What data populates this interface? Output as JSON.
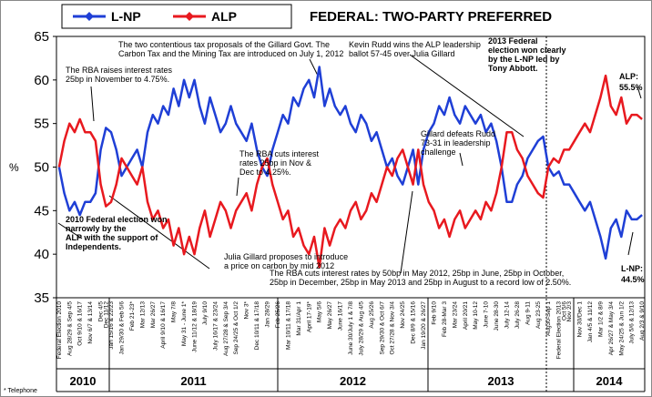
{
  "chart_data": {
    "type": "line",
    "title": "FEDERAL: TWO-PARTY PREFERRED",
    "y_label": "%",
    "footnote": "* Telephone",
    "ylim": [
      35,
      65
    ],
    "yticks": [
      35,
      40,
      45,
      50,
      55,
      60,
      65
    ],
    "years": [
      "2010",
      "2011",
      "2012",
      "2013",
      "2014"
    ],
    "categories": [
      "Federal Election 2010",
      null,
      "Aug 28/29 & Sep 4/5",
      null,
      "Oct 9/10 & 16/17",
      null,
      "Nov 6/7 & 13/14",
      null,
      "Dec 4/5",
      "Dec 11/12",
      "Jan 15/16 & 22/23",
      null,
      "Jan 29/30 & Feb 5/6",
      null,
      "Feb 21-23*",
      null,
      "Mar 12/13",
      null,
      "Mar 26/27",
      null,
      "April 9/10 & 16/17",
      null,
      "May 7/8",
      null,
      "May 31 - June 1*",
      null,
      "June 11/12 & 18/19",
      null,
      "July 9/10",
      null,
      "July 16/17 & 23/24",
      null,
      "Aug 27/28 & Sep 3/4",
      null,
      "Sep 24/25 & Oct 1/2",
      null,
      "Nov 3*",
      null,
      "Dec 10/11 & 17/18",
      null,
      "Jan 28/29",
      null,
      "Feb 25/26",
      null,
      "Mar 10/11 & 17/18",
      null,
      "Mar 31/Apr 1",
      null,
      "April 17-19*",
      null,
      "May 5/6",
      null,
      "May 26/27",
      null,
      "June 16/17",
      null,
      "June 30/July 1 & 7/8",
      null,
      "July 28/29 & Aug 4/5",
      null,
      "Aug 25/26",
      null,
      "Sep 29/30 & Oct 6/7",
      null,
      "Oct 27/28 & Nov 3/4",
      null,
      "Nov 24/25",
      null,
      "Dec 8/9 & 15/16",
      null,
      "Jan 19/20 & 26/27",
      null,
      "Feb 9/10",
      null,
      "Feb 28-Mar 3",
      null,
      "Mar 23/24",
      null,
      "April 20/21",
      null,
      "May 10-12",
      null,
      "June 7-10",
      null,
      "June 28-30",
      null,
      "July 12-14",
      null,
      "July 26-28",
      null,
      "Aug 9-11",
      null,
      "Aug 23-25",
      null,
      "Aug30-Sep 1",
      null,
      "Federal Election 2013",
      "Oct 5/6",
      "Nov 2/3",
      null,
      "Nov 30/Dec 1",
      null,
      "Jan 4/5 & 11/12",
      null,
      "Mar 1/2 & 8/9",
      null,
      "Apr 26/27 & May 3/4",
      null,
      "May 24/25 & Jun 1/2",
      null,
      "July 5/6 & 12/13",
      null,
      "Aug 2/3 & 9/10"
    ],
    "series": [
      {
        "name": "L-NP",
        "color": "#1f3fd6",
        "values": [
          50,
          47,
          45,
          46,
          44.5,
          46,
          46,
          47,
          52,
          54.5,
          54,
          52,
          49,
          50,
          51,
          52,
          50,
          54,
          56,
          55,
          57,
          56,
          59,
          57,
          60,
          58,
          60,
          57,
          55,
          58,
          56,
          54,
          55,
          57,
          55,
          54,
          53,
          55,
          52,
          50,
          49,
          52,
          54,
          56,
          55,
          58,
          57,
          59,
          60,
          58,
          61.5,
          57,
          59,
          57,
          56,
          57,
          55,
          54,
          56,
          55,
          53,
          54,
          52,
          50,
          51,
          49,
          48,
          50,
          52,
          48,
          52,
          54,
          55,
          57,
          56,
          58,
          56,
          55,
          57,
          56,
          55,
          56,
          54,
          55,
          53,
          50,
          46,
          46,
          48,
          49,
          51,
          52,
          53,
          53.5,
          50,
          49,
          49.5,
          48,
          48,
          47,
          46,
          45,
          46,
          44,
          42,
          39.5,
          43,
          44,
          42,
          45,
          44,
          44,
          44.5
        ]
      },
      {
        "name": "ALP",
        "color": "#e8191f",
        "values": [
          50,
          53,
          55,
          54,
          55.5,
          54,
          54,
          53,
          48,
          45.5,
          46,
          48,
          51,
          50,
          49,
          48,
          50,
          46,
          44,
          45,
          43,
          44,
          41,
          43,
          40,
          42,
          40,
          43,
          45,
          42,
          44,
          46,
          45,
          43,
          45,
          46,
          47,
          45,
          48,
          50,
          51,
          48,
          46,
          44,
          45,
          42,
          43,
          41,
          40,
          42,
          38.5,
          43,
          41,
          43,
          44,
          43,
          45,
          46,
          44,
          45,
          47,
          46,
          48,
          50,
          49,
          51,
          52,
          50,
          48,
          52,
          48,
          46,
          45,
          43,
          44,
          42,
          44,
          45,
          43,
          44,
          45,
          44,
          46,
          45,
          47,
          50,
          54,
          54,
          52,
          51,
          49,
          48,
          47,
          46.5,
          50,
          51,
          50.5,
          52,
          52,
          53,
          54,
          55,
          54,
          56,
          58,
          60.5,
          57,
          56,
          58,
          55,
          56,
          56,
          55.5
        ]
      }
    ],
    "annotations": [
      [
        "The two contentious tax proposals of the Gillard Govt. The",
        "Carbon Tax and the Mining Tax are introduced on July 1, 2012"
      ],
      [
        "The RBA raises interest rates",
        "25bp in November to 4.75%."
      ],
      [
        "Kevin Rudd wins the ALP leadership",
        "ballot 57-45 over Julia Gillard"
      ],
      [
        "2013 Federal",
        "election won clearly",
        "by the L-NP led by",
        "Tony Abbott."
      ],
      [
        "ALP:",
        "55.5%"
      ],
      [
        "The RBA cuts interest",
        "rates 25bp in Nov &",
        "Dec to 4.25%."
      ],
      [
        "Gillard defeats Rudd",
        "73-31 in leadership",
        "challenge"
      ],
      [
        "2010 Federal election won",
        "narrowly by the",
        "ALP with the support of",
        "Independents."
      ],
      [
        "Julia Gillard proposes to introduce",
        "a price on carbon by mid 2012"
      ],
      [
        "The RBA cuts interest rates by 50bp in May 2012, 25bp in June, 25bp in October,",
        "25bp in December, 25bp in May 2013 and 25bp in August to a record low of 2.50%."
      ],
      [
        "L-NP:",
        "44.5%"
      ]
    ]
  }
}
